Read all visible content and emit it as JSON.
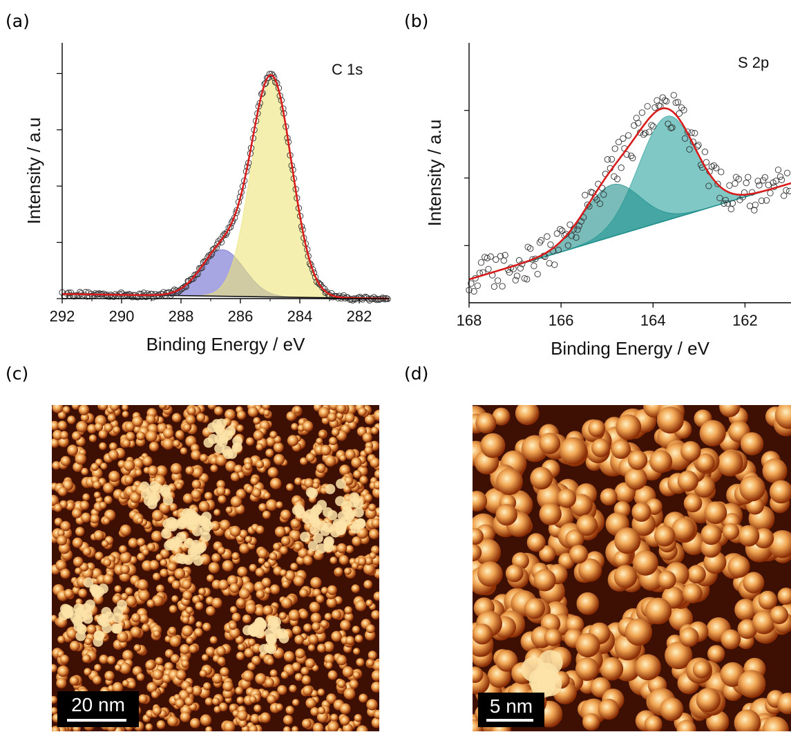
{
  "panels": {
    "a": "(a)",
    "b": "(b)",
    "c": "(c)",
    "d": "(d)"
  },
  "chart_data": [
    {
      "panel": "(a)",
      "type": "line",
      "annotation": "C 1s",
      "xlabel": "Binding Energy / eV",
      "ylabel": "Intensity / a.u",
      "xlim": [
        292,
        281
      ],
      "ylim": [
        0,
        1.1
      ],
      "x_ticks": [
        292,
        290,
        288,
        286,
        284,
        282
      ],
      "x_tick_labels": [
        "292",
        "290",
        "288",
        "286",
        "284",
        "282"
      ],
      "background": {
        "start": [
          292,
          0.02
        ],
        "end": [
          281,
          0.0
        ]
      },
      "components": [
        {
          "center": 286.6,
          "height": 0.2,
          "fwhm": 1.7,
          "color": "#6e6bcf"
        },
        {
          "center": 284.95,
          "height": 0.94,
          "fwhm": 1.6,
          "color": "#ece47a"
        }
      ],
      "fit_color": "#d81b1b",
      "data_points": "scattered open circles along the fit envelope, 292–281 eV"
    },
    {
      "panel": "(b)",
      "type": "line",
      "annotation": "S 2p",
      "xlabel": "Binding Energy / eV",
      "ylabel": "Intensity  / a.u",
      "xlim": [
        168,
        161
      ],
      "ylim": [
        0,
        1
      ],
      "x_ticks": [
        168,
        166,
        164,
        162
      ],
      "x_tick_labels": [
        "168",
        "166",
        "164",
        "162"
      ],
      "background": {
        "start": [
          168,
          0.09
        ],
        "end": [
          161,
          0.46
        ]
      },
      "components": [
        {
          "center": 163.7,
          "height": 0.4,
          "fwhm": 1.45,
          "color": "#2ba3a0"
        },
        {
          "center": 164.9,
          "height": 0.2,
          "fwhm": 1.45,
          "color": "#1f8f8c"
        }
      ],
      "fit_color": "#d81b1b",
      "data_points": "scattered open circles, noisy, 168–161 eV"
    }
  ],
  "images": {
    "c": {
      "scale_bar_label": "20 nm"
    },
    "d": {
      "scale_bar_label": "5 nm"
    }
  }
}
